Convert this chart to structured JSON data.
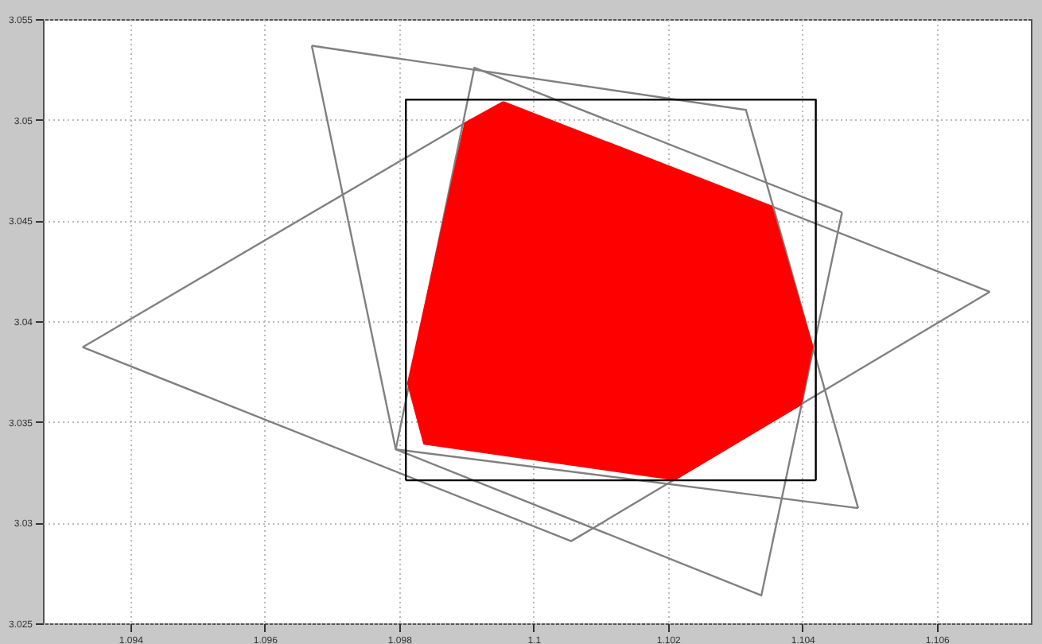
{
  "chart_data": {
    "type": "line",
    "xlim": [
      1.0927,
      1.1074
    ],
    "ylim": [
      3.025,
      3.055
    ],
    "xticks": [
      1.094,
      1.096,
      1.098,
      1.1,
      1.102,
      1.104,
      1.106
    ],
    "yticks": [
      3.025,
      3.03,
      3.035,
      3.04,
      3.045,
      3.05,
      3.055
    ],
    "grid": true,
    "marker": "none",
    "line_style": "solid",
    "series": [
      {
        "color": "#808080",
        "x": [
          1.0967,
          1.10316,
          1.10483
        ],
        "values": [
          3.05368,
          3.05049,
          3.03072
        ]
      },
      {
        "color": "#808080",
        "x": [
          1.0967,
          1.09795,
          1.10483
        ],
        "values": [
          3.05368,
          3.03364,
          3.03072
        ]
      },
      {
        "color": "#808080",
        "x": [
          1.09795,
          1.09912,
          1.10459
        ],
        "values": [
          3.03364,
          3.05259,
          3.0454
        ]
      },
      {
        "color": "#808080",
        "x": [
          1.09795,
          1.10339,
          1.10459
        ],
        "values": [
          3.03364,
          3.02639,
          3.0454
        ]
      },
      {
        "color": "#808080",
        "x": [
          1.09329,
          1.09898
        ],
        "values": [
          3.03871,
          3.04984
        ]
      },
      {
        "color": "#808080",
        "x": [
          1.10354,
          1.10679
        ],
        "values": [
          3.04571,
          3.04146
        ]
      },
      {
        "color": "#808080",
        "x": [
          1.09329,
          1.10056,
          1.10679
        ],
        "values": [
          3.03871,
          3.02908,
          3.04146
        ]
      },
      {
        "type": "area",
        "color": "#ff0000",
        "x": [
          1.09955,
          1.10354,
          1.10415,
          1.10398,
          1.1021,
          1.09837,
          1.09813,
          1.09898,
          1.09955
        ],
        "values": [
          3.05089,
          3.04571,
          3.03874,
          3.03587,
          3.03213,
          3.03391,
          3.03691,
          3.04984,
          3.05089
        ]
      },
      {
        "color": "#000000",
        "x": [
          1.0981,
          1.0981,
          1.1042,
          1.1042
        ],
        "values": [
          3.0321,
          3.051,
          3.051,
          3.0321
        ]
      },
      {
        "color": "#000000",
        "x": [
          1.0981,
          1.1042
        ],
        "values": [
          3.0321,
          3.0321
        ]
      }
    ]
  }
}
